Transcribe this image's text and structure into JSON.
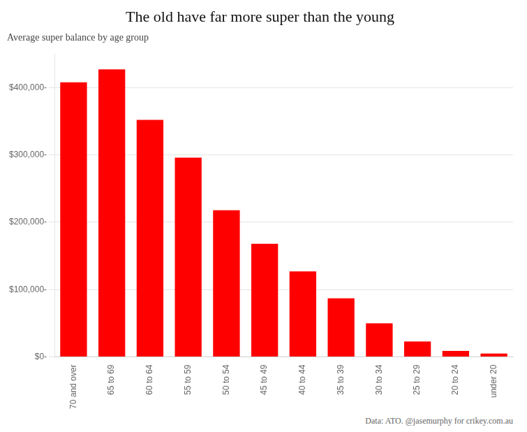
{
  "chart_data": {
    "type": "bar",
    "title": "The old have far more super than the young",
    "subtitle": "Average super balance by age group",
    "annotations": [
      "Data: ATO. @jasemurphy for crikey.com.au"
    ],
    "categories": [
      "70 and over",
      "65 to 69",
      "60 to 64",
      "55 to 59",
      "50 to 54",
      "45 to 49",
      "40 to 44",
      "35 to 39",
      "30 to 34",
      "25 to 29",
      "20 to 24",
      "under 20"
    ],
    "values": [
      408000,
      427000,
      352000,
      296000,
      218000,
      168000,
      127000,
      87000,
      50000,
      23000,
      9000,
      5000
    ],
    "color": "#ff0000",
    "ylim": [
      0,
      450000
    ],
    "yticks": [
      {
        "value": 0,
        "label": "$0-"
      },
      {
        "value": 100000,
        "label": "$100,000-"
      },
      {
        "value": 200000,
        "label": "$200,000-"
      },
      {
        "value": 300000,
        "label": "$300,000-"
      },
      {
        "value": 400000,
        "label": "$400,000-"
      }
    ],
    "grid": true
  }
}
